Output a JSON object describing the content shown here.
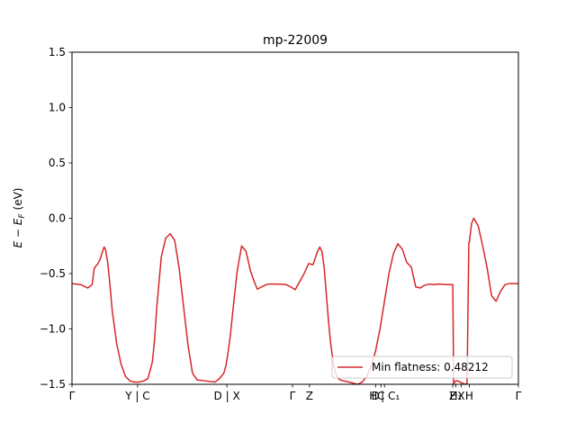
{
  "chart_data": {
    "type": "line",
    "title": "mp-22009",
    "xlabel": "",
    "ylabel": "E − E_F (eV)",
    "ylabel_parts": {
      "main": "E − E",
      "sub": "F",
      "unit": "(eV)"
    },
    "xlim": [
      0,
      1
    ],
    "ylim": [
      -1.5,
      1.5
    ],
    "yticks": [
      1.5,
      1.0,
      0.5,
      0.0,
      -0.5,
      -1.0,
      -1.5
    ],
    "ytick_labels": [
      "1.5",
      "1.0",
      "0.5",
      "0.0",
      "−0.5",
      "−1.0",
      "−1.5"
    ],
    "xticks": [
      {
        "pos": 0.0,
        "label": "Γ"
      },
      {
        "pos": 0.147,
        "label": "Y | C"
      },
      {
        "pos": 0.347,
        "label": "D | X"
      },
      {
        "pos": 0.494,
        "label": "Γ"
      },
      {
        "pos": 0.532,
        "label": "Z"
      },
      {
        "pos": 0.68,
        "label": "D"
      },
      {
        "pos": 0.692,
        "label": "C"
      },
      {
        "pos": 0.7,
        "label": "H | C₁"
      },
      {
        "pos": 0.853,
        "label": "Z"
      },
      {
        "pos": 0.86,
        "label": "H₁"
      },
      {
        "pos": 0.872,
        "label": "X"
      },
      {
        "pos": 0.89,
        "label": "H"
      },
      {
        "pos": 1.0,
        "label": "Γ"
      }
    ],
    "grid": false,
    "legend": {
      "location": "lower-right",
      "entries": [
        "Min flatness: 0.48212"
      ]
    },
    "series": [
      {
        "name": "Min flatness: 0.48212",
        "color": "#d62728",
        "x": [
          0.0,
          0.02,
          0.035,
          0.045,
          0.05,
          0.058,
          0.063,
          0.07,
          0.072,
          0.075,
          0.08,
          0.085,
          0.09,
          0.1,
          0.11,
          0.12,
          0.13,
          0.14,
          0.15,
          0.16,
          0.17,
          0.18,
          0.185,
          0.19,
          0.2,
          0.21,
          0.22,
          0.23,
          0.24,
          0.25,
          0.26,
          0.27,
          0.28,
          0.3,
          0.32,
          0.33,
          0.34,
          0.345,
          0.35,
          0.355,
          0.36,
          0.37,
          0.38,
          0.39,
          0.4,
          0.41,
          0.415,
          0.42,
          0.425,
          0.43,
          0.435,
          0.44,
          0.45,
          0.46,
          0.47,
          0.48,
          0.49,
          0.5,
          0.52,
          0.53,
          0.54,
          0.55,
          0.555,
          0.56,
          0.565,
          0.57,
          0.575,
          0.58,
          0.585,
          0.59,
          0.595,
          0.6,
          0.61,
          0.62,
          0.63,
          0.64,
          0.65,
          0.66,
          0.67,
          0.68,
          0.69,
          0.7,
          0.71,
          0.72,
          0.73,
          0.74,
          0.75,
          0.76,
          0.77,
          0.78,
          0.79,
          0.8,
          0.81,
          0.82,
          0.83,
          0.84,
          0.85,
          0.853,
          0.855,
          0.857,
          0.86,
          0.865,
          0.87,
          0.875,
          0.88,
          0.885,
          0.889,
          0.89,
          0.895,
          0.9,
          0.91,
          0.92,
          0.93,
          0.94,
          0.95,
          0.96,
          0.965,
          0.97,
          0.98,
          0.99,
          1.0
        ],
        "y": [
          -0.59,
          -0.6,
          -0.63,
          -0.6,
          -0.45,
          -0.41,
          -0.37,
          -0.28,
          -0.26,
          -0.28,
          -0.4,
          -0.6,
          -0.83,
          -1.13,
          -1.32,
          -1.43,
          -1.47,
          -1.48,
          -1.48,
          -1.47,
          -1.45,
          -1.3,
          -1.1,
          -0.8,
          -0.35,
          -0.18,
          -0.14,
          -0.2,
          -0.45,
          -0.8,
          -1.15,
          -1.4,
          -1.46,
          -1.47,
          -1.48,
          -1.45,
          -1.4,
          -1.33,
          -1.2,
          -1.05,
          -0.85,
          -0.48,
          -0.25,
          -0.3,
          -0.48,
          -0.59,
          -0.64,
          -0.63,
          -0.62,
          -0.61,
          -0.6,
          -0.595,
          -0.595,
          -0.595,
          -0.597,
          -0.6,
          -0.62,
          -0.645,
          -0.5,
          -0.41,
          -0.42,
          -0.3,
          -0.26,
          -0.3,
          -0.45,
          -0.7,
          -0.95,
          -1.15,
          -1.3,
          -1.39,
          -1.44,
          -1.46,
          -1.47,
          -1.48,
          -1.49,
          -1.5,
          -1.48,
          -1.43,
          -1.34,
          -1.2,
          -1.0,
          -0.75,
          -0.5,
          -0.32,
          -0.23,
          -0.28,
          -0.4,
          -0.44,
          -0.62,
          -0.63,
          -0.605,
          -0.595,
          -0.6,
          -0.595,
          -0.597,
          -0.6,
          -0.6,
          -0.6,
          -1.5,
          -1.48,
          -1.47,
          -1.47,
          -1.48,
          -1.49,
          -1.5,
          -1.49,
          -0.22,
          -0.22,
          -0.05,
          0.0,
          -0.07,
          -0.25,
          -0.45,
          -0.7,
          -0.75,
          -0.66,
          -0.63,
          -0.6,
          -0.59,
          -0.59,
          -0.59
        ]
      }
    ]
  }
}
